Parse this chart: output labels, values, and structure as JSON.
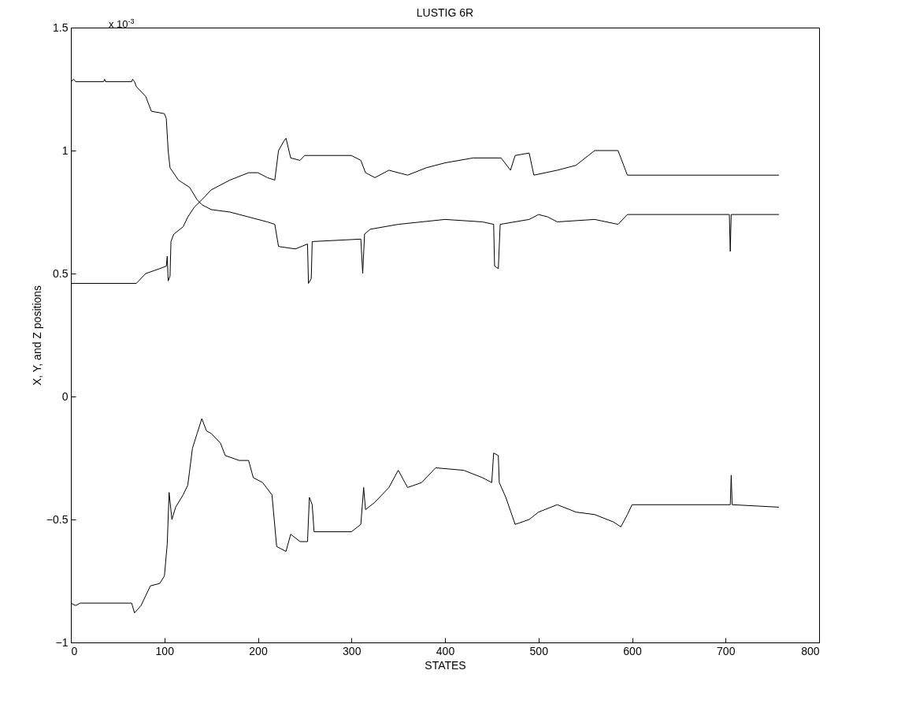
{
  "chart_data": {
    "type": "line",
    "title": "LUSTIG 6R",
    "xlabel": "STATES",
    "ylabel": "X, Y, and Z positions",
    "annotations": [
      "x 10$^{-3}$"
    ],
    "xlim": [
      0,
      800
    ],
    "xticks": [
      0,
      100,
      200,
      300,
      400,
      500,
      600,
      700,
      800
    ],
    "ylim": [
      -1,
      1.5
    ],
    "yticks": [
      -1,
      -0.5,
      0,
      0.5,
      1,
      1.5
    ],
    "grid": false,
    "legend": false,
    "marker": "none",
    "line_style": "solid",
    "series": [
      {
        "color": "#000000",
        "x": [
          0,
          3,
          5,
          35,
          36,
          37,
          65,
          66,
          68,
          70,
          80,
          86,
          100,
          102,
          104,
          106,
          115,
          127,
          135,
          140,
          150,
          170,
          190,
          210,
          218,
          222,
          240,
          253,
          254,
          257,
          258,
          310,
          312,
          314,
          320,
          350,
          400,
          440,
          452,
          453,
          457,
          459,
          490,
          500,
          510,
          520,
          560,
          585,
          595,
          704,
          705,
          706,
          757
        ],
        "values": [
          1.28,
          1.29,
          1.28,
          1.28,
          1.29,
          1.28,
          1.28,
          1.29,
          1.28,
          1.26,
          1.22,
          1.16,
          1.15,
          1.13,
          1.0,
          0.93,
          0.88,
          0.85,
          0.8,
          0.78,
          0.76,
          0.75,
          0.73,
          0.71,
          0.7,
          0.61,
          0.6,
          0.62,
          0.46,
          0.48,
          0.63,
          0.64,
          0.5,
          0.66,
          0.68,
          0.7,
          0.72,
          0.71,
          0.7,
          0.53,
          0.52,
          0.7,
          0.72,
          0.74,
          0.73,
          0.71,
          0.72,
          0.7,
          0.74,
          0.74,
          0.59,
          0.74,
          0.74
        ]
      },
      {
        "color": "#000000",
        "x": [
          0,
          70,
          80,
          95,
          102,
          103,
          104,
          106,
          107,
          110,
          120,
          125,
          132,
          140,
          150,
          170,
          190,
          200,
          210,
          218,
          222,
          228,
          230,
          235,
          245,
          250,
          300,
          310,
          315,
          325,
          340,
          360,
          380,
          400,
          430,
          460,
          470,
          475,
          490,
          495,
          520,
          540,
          560,
          585,
          595,
          757
        ],
        "values": [
          0.46,
          0.46,
          0.5,
          0.52,
          0.53,
          0.57,
          0.47,
          0.49,
          0.63,
          0.66,
          0.69,
          0.73,
          0.77,
          0.8,
          0.84,
          0.88,
          0.91,
          0.91,
          0.89,
          0.88,
          1.0,
          1.04,
          1.05,
          0.97,
          0.96,
          0.98,
          0.98,
          0.96,
          0.91,
          0.89,
          0.92,
          0.9,
          0.93,
          0.95,
          0.97,
          0.97,
          0.92,
          0.98,
          0.99,
          0.9,
          0.92,
          0.94,
          1.0,
          1.0,
          0.9,
          0.9
        ]
      },
      {
        "color": "#000000",
        "x": [
          0,
          5,
          10,
          65,
          68,
          75,
          85,
          95,
          100,
          103,
          105,
          108,
          112,
          120,
          125,
          130,
          135,
          140,
          145,
          150,
          160,
          165,
          180,
          190,
          195,
          205,
          215,
          220,
          230,
          235,
          245,
          253,
          255,
          258,
          260,
          300,
          310,
          313,
          315,
          325,
          340,
          350,
          360,
          375,
          390,
          420,
          440,
          450,
          452,
          457,
          458,
          465,
          475,
          490,
          500,
          520,
          540,
          560,
          580,
          588,
          595,
          600,
          705,
          706,
          707,
          757
        ],
        "values": [
          -0.84,
          -0.85,
          -0.84,
          -0.84,
          -0.88,
          -0.85,
          -0.77,
          -0.76,
          -0.73,
          -0.6,
          -0.39,
          -0.5,
          -0.45,
          -0.4,
          -0.36,
          -0.21,
          -0.15,
          -0.09,
          -0.14,
          -0.15,
          -0.19,
          -0.24,
          -0.26,
          -0.26,
          -0.33,
          -0.35,
          -0.4,
          -0.61,
          -0.63,
          -0.56,
          -0.59,
          -0.59,
          -0.41,
          -0.44,
          -0.55,
          -0.55,
          -0.52,
          -0.37,
          -0.46,
          -0.43,
          -0.37,
          -0.3,
          -0.37,
          -0.35,
          -0.29,
          -0.3,
          -0.33,
          -0.35,
          -0.23,
          -0.24,
          -0.35,
          -0.41,
          -0.52,
          -0.5,
          -0.47,
          -0.44,
          -0.47,
          -0.48,
          -0.51,
          -0.53,
          -0.48,
          -0.44,
          -0.44,
          -0.32,
          -0.44,
          -0.45
        ]
      }
    ]
  }
}
